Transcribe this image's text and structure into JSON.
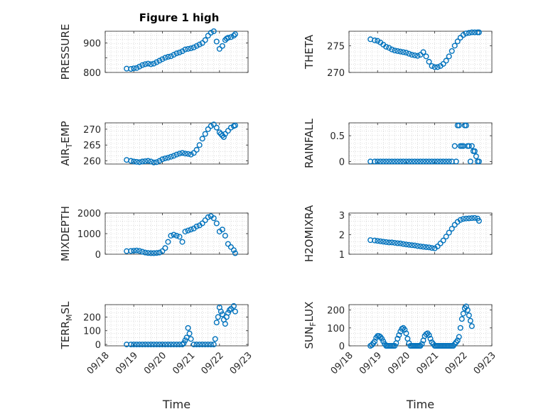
{
  "figure": {
    "title": "Figure 1 high",
    "xlabel": "Time",
    "x_tick_labels": [
      "09/18",
      "09/19",
      "09/20",
      "09/21",
      "09/22",
      "09/23"
    ],
    "marker_color": "#0072BD",
    "grid": "minor dotted"
  },
  "chart_data": [
    {
      "type": "scatter",
      "ylabel": "PRESSURE",
      "ylabel_base": "PRESSURE",
      "ylabel_sub": "",
      "ylabel_rest": "",
      "title": "Figure 1 high",
      "xlim": [
        0,
        5
      ],
      "ylim": [
        800,
        940
      ],
      "yticks": [
        800,
        850,
        900
      ],
      "ytick_labels": [
        "800",
        "",
        "900"
      ],
      "x": [
        0.75,
        0.9,
        1.0,
        1.1,
        1.2,
        1.3,
        1.4,
        1.5,
        1.6,
        1.7,
        1.8,
        1.9,
        2.0,
        2.1,
        2.2,
        2.3,
        2.4,
        2.5,
        2.6,
        2.7,
        2.8,
        2.9,
        3.0,
        3.1,
        3.2,
        3.3,
        3.4,
        3.5,
        3.6,
        3.7,
        3.8,
        3.9,
        4.0,
        4.1,
        4.2,
        4.25,
        4.3,
        4.4,
        4.5,
        4.55
      ],
      "y": [
        813,
        812,
        814,
        815,
        820,
        825,
        828,
        830,
        828,
        830,
        835,
        840,
        845,
        850,
        853,
        855,
        860,
        865,
        868,
        872,
        878,
        880,
        882,
        885,
        890,
        895,
        900,
        910,
        925,
        935,
        940,
        905,
        880,
        890,
        910,
        915,
        918,
        920,
        925,
        930
      ]
    },
    {
      "type": "scatter",
      "ylabel": "THETA",
      "ylabel_base": "THETA",
      "ylabel_sub": "",
      "ylabel_rest": "",
      "xlim": [
        0,
        5
      ],
      "ylim": [
        270,
        277.7
      ],
      "yticks": [
        270,
        275
      ],
      "ytick_labels": [
        "270",
        "275"
      ],
      "x": [
        0.75,
        0.9,
        1.0,
        1.1,
        1.2,
        1.3,
        1.4,
        1.5,
        1.6,
        1.7,
        1.8,
        1.9,
        2.0,
        2.1,
        2.2,
        2.3,
        2.4,
        2.5,
        2.6,
        2.7,
        2.8,
        2.9,
        3.0,
        3.1,
        3.2,
        3.3,
        3.4,
        3.5,
        3.6,
        3.7,
        3.8,
        3.9,
        4.0,
        4.1,
        4.2,
        4.3,
        4.4,
        4.5,
        4.55
      ],
      "y": [
        276.2,
        276.0,
        275.9,
        275.6,
        275.2,
        274.8,
        274.6,
        274.3,
        274.1,
        274.0,
        273.9,
        273.8,
        273.7,
        273.5,
        273.3,
        273.2,
        273.1,
        273.3,
        273.8,
        273.0,
        272.0,
        271.2,
        271.0,
        271.0,
        271.2,
        271.6,
        272.2,
        273.0,
        274.0,
        275.0,
        275.8,
        276.5,
        277.0,
        277.3,
        277.4,
        277.5,
        277.5,
        277.5,
        277.5
      ]
    },
    {
      "type": "scatter",
      "ylabel": "AIRTEMP",
      "ylabel_base": "AIR",
      "ylabel_sub": "T",
      "ylabel_rest": "EMP",
      "xlim": [
        0,
        5
      ],
      "ylim": [
        259,
        272
      ],
      "yticks": [
        260,
        265,
        270
      ],
      "ytick_labels": [
        "260",
        "265",
        "270"
      ],
      "x": [
        0.75,
        0.9,
        1.0,
        1.1,
        1.2,
        1.3,
        1.4,
        1.5,
        1.6,
        1.7,
        1.8,
        1.9,
        2.0,
        2.1,
        2.2,
        2.3,
        2.4,
        2.5,
        2.6,
        2.7,
        2.8,
        2.9,
        3.0,
        3.1,
        3.2,
        3.3,
        3.4,
        3.5,
        3.6,
        3.7,
        3.8,
        3.9,
        4.0,
        4.05,
        4.1,
        4.15,
        4.2,
        4.3,
        4.4,
        4.5,
        4.55
      ],
      "y": [
        260.3,
        260.0,
        259.8,
        259.7,
        259.6,
        259.8,
        259.9,
        260.0,
        259.8,
        259.5,
        259.6,
        260.0,
        260.5,
        260.8,
        261.0,
        261.3,
        261.6,
        262.0,
        262.3,
        262.5,
        262.3,
        262.2,
        262.0,
        262.5,
        263.5,
        265.0,
        267.0,
        268.5,
        270.0,
        271.0,
        271.5,
        270.5,
        269.0,
        268.5,
        268.0,
        267.5,
        268.5,
        269.5,
        270.5,
        271.0,
        271.2
      ]
    },
    {
      "type": "scatter",
      "ylabel": "RAINFALL",
      "ylabel_base": "RAINFALL",
      "ylabel_sub": "",
      "ylabel_rest": "",
      "xlim": [
        0,
        5
      ],
      "ylim": [
        -0.05,
        0.75
      ],
      "yticks": [
        0,
        0.5
      ],
      "ytick_labels": [
        "0",
        "0.5"
      ],
      "x": [
        0.75,
        0.9,
        1.0,
        1.1,
        1.2,
        1.3,
        1.4,
        1.5,
        1.6,
        1.7,
        1.8,
        1.9,
        2.0,
        2.1,
        2.2,
        2.3,
        2.4,
        2.5,
        2.6,
        2.7,
        2.8,
        2.9,
        3.0,
        3.1,
        3.2,
        3.3,
        3.4,
        3.5,
        3.6,
        3.7,
        3.75,
        3.8,
        3.85,
        3.9,
        3.95,
        4.0,
        4.05,
        4.1,
        4.15,
        4.2,
        4.25,
        4.3,
        4.35,
        4.4,
        4.45,
        4.5,
        4.55
      ],
      "y": [
        0,
        0,
        0,
        0,
        0,
        0,
        0,
        0,
        0,
        0,
        0,
        0,
        0,
        0,
        0,
        0,
        0,
        0,
        0,
        0,
        0,
        0,
        0,
        0,
        0,
        0,
        0,
        0,
        0,
        0.3,
        0,
        0.7,
        0.7,
        0.3,
        0.3,
        0.3,
        0.7,
        0.7,
        0.3,
        0.3,
        0,
        0.3,
        0.2,
        0.2,
        0.1,
        0,
        0
      ]
    },
    {
      "type": "scatter",
      "ylabel": "MIXDEPTH",
      "ylabel_base": "MIXDEPTH",
      "ylabel_sub": "",
      "ylabel_rest": "",
      "xlim": [
        0,
        5
      ],
      "ylim": [
        0,
        2000
      ],
      "yticks": [
        0,
        1000,
        2000
      ],
      "ytick_labels": [
        "0",
        "1000",
        "2000"
      ],
      "x": [
        0.75,
        0.9,
        1.0,
        1.1,
        1.2,
        1.3,
        1.4,
        1.5,
        1.6,
        1.7,
        1.8,
        1.9,
        2.0,
        2.1,
        2.2,
        2.3,
        2.4,
        2.5,
        2.6,
        2.7,
        2.8,
        2.9,
        3.0,
        3.1,
        3.2,
        3.3,
        3.4,
        3.5,
        3.6,
        3.7,
        3.8,
        3.9,
        4.0,
        4.1,
        4.2,
        4.3,
        4.4,
        4.5,
        4.55
      ],
      "y": [
        150,
        160,
        170,
        180,
        160,
        120,
        80,
        60,
        50,
        50,
        60,
        80,
        150,
        300,
        600,
        900,
        950,
        900,
        850,
        600,
        1100,
        1150,
        1200,
        1250,
        1350,
        1400,
        1500,
        1650,
        1800,
        1850,
        1750,
        1500,
        1100,
        1200,
        900,
        500,
        350,
        200,
        50
      ]
    },
    {
      "type": "scatter",
      "ylabel": "H2OMIXRA",
      "ylabel_base": "H2OMIXRA",
      "ylabel_sub": "",
      "ylabel_rest": "",
      "xlim": [
        0,
        5
      ],
      "ylim": [
        1,
        3.1
      ],
      "yticks": [
        1,
        2,
        3
      ],
      "ytick_labels": [
        "1",
        "2",
        "3"
      ],
      "x": [
        0.75,
        0.9,
        1.0,
        1.1,
        1.2,
        1.3,
        1.4,
        1.5,
        1.6,
        1.7,
        1.8,
        1.9,
        2.0,
        2.1,
        2.2,
        2.3,
        2.4,
        2.5,
        2.6,
        2.7,
        2.8,
        2.9,
        3.0,
        3.1,
        3.2,
        3.3,
        3.4,
        3.5,
        3.6,
        3.7,
        3.8,
        3.9,
        4.0,
        4.1,
        4.2,
        4.3,
        4.4,
        4.5,
        4.55
      ],
      "y": [
        1.72,
        1.7,
        1.68,
        1.66,
        1.64,
        1.62,
        1.6,
        1.6,
        1.58,
        1.56,
        1.55,
        1.52,
        1.5,
        1.48,
        1.46,
        1.45,
        1.42,
        1.4,
        1.38,
        1.36,
        1.35,
        1.32,
        1.3,
        1.4,
        1.55,
        1.7,
        1.9,
        2.1,
        2.3,
        2.5,
        2.65,
        2.75,
        2.8,
        2.82,
        2.83,
        2.84,
        2.85,
        2.82,
        2.7
      ]
    },
    {
      "type": "scatter",
      "ylabel": "TERRMSL",
      "ylabel_base": "TERR",
      "ylabel_sub": "M",
      "ylabel_rest": "SL",
      "xlim": [
        0,
        5
      ],
      "ylim": [
        -10,
        290
      ],
      "yticks": [
        0,
        100,
        200
      ],
      "ytick_labels": [
        "0",
        "100",
        "200"
      ],
      "x": [
        0.75,
        0.9,
        1.0,
        1.1,
        1.2,
        1.3,
        1.4,
        1.5,
        1.6,
        1.7,
        1.8,
        1.9,
        2.0,
        2.1,
        2.2,
        2.3,
        2.4,
        2.5,
        2.6,
        2.7,
        2.75,
        2.8,
        2.85,
        2.9,
        2.95,
        3.0,
        3.1,
        3.2,
        3.3,
        3.4,
        3.5,
        3.6,
        3.7,
        3.8,
        3.85,
        3.9,
        3.95,
        4.0,
        4.05,
        4.1,
        4.15,
        4.2,
        4.25,
        4.3,
        4.35,
        4.4,
        4.5,
        4.55
      ],
      "y": [
        0,
        0,
        0,
        0,
        0,
        0,
        0,
        0,
        0,
        0,
        0,
        0,
        0,
        0,
        0,
        0,
        0,
        0,
        0,
        0,
        10,
        30,
        50,
        120,
        80,
        40,
        0,
        0,
        0,
        0,
        0,
        0,
        0,
        0,
        40,
        160,
        200,
        270,
        240,
        220,
        180,
        150,
        200,
        230,
        250,
        260,
        280,
        240
      ]
    },
    {
      "type": "scatter",
      "ylabel": "SUNFLUX",
      "ylabel_base": "SUN",
      "ylabel_sub": "F",
      "ylabel_rest": "LUX",
      "xlim": [
        0,
        5
      ],
      "ylim": [
        0,
        230
      ],
      "yticks": [
        0,
        100,
        200
      ],
      "ytick_labels": [
        "0",
        "100",
        "200"
      ],
      "x": [
        0.75,
        0.8,
        0.85,
        0.9,
        0.95,
        1.0,
        1.05,
        1.1,
        1.15,
        1.2,
        1.25,
        1.3,
        1.35,
        1.4,
        1.45,
        1.5,
        1.55,
        1.6,
        1.65,
        1.7,
        1.75,
        1.8,
        1.85,
        1.9,
        1.95,
        2.0,
        2.05,
        2.1,
        2.15,
        2.2,
        2.25,
        2.3,
        2.35,
        2.4,
        2.45,
        2.5,
        2.55,
        2.6,
        2.65,
        2.7,
        2.75,
        2.8,
        2.85,
        2.9,
        2.95,
        3.0,
        3.05,
        3.1,
        3.15,
        3.2,
        3.25,
        3.3,
        3.35,
        3.4,
        3.45,
        3.5,
        3.55,
        3.6,
        3.65,
        3.7,
        3.75,
        3.8,
        3.85,
        3.9,
        3.95,
        4.0,
        4.05,
        4.1,
        4.15,
        4.2,
        4.25,
        4.3
      ],
      "y": [
        0,
        5,
        15,
        25,
        45,
        55,
        55,
        50,
        40,
        25,
        10,
        0,
        0,
        0,
        0,
        0,
        0,
        0,
        15,
        40,
        60,
        80,
        95,
        100,
        90,
        70,
        40,
        15,
        0,
        0,
        0,
        0,
        0,
        0,
        0,
        0,
        10,
        30,
        55,
        65,
        70,
        60,
        40,
        20,
        10,
        0,
        0,
        0,
        0,
        0,
        0,
        0,
        0,
        0,
        0,
        0,
        0,
        0,
        0,
        10,
        20,
        30,
        50,
        100,
        150,
        180,
        210,
        220,
        200,
        170,
        140,
        110
      ]
    }
  ]
}
